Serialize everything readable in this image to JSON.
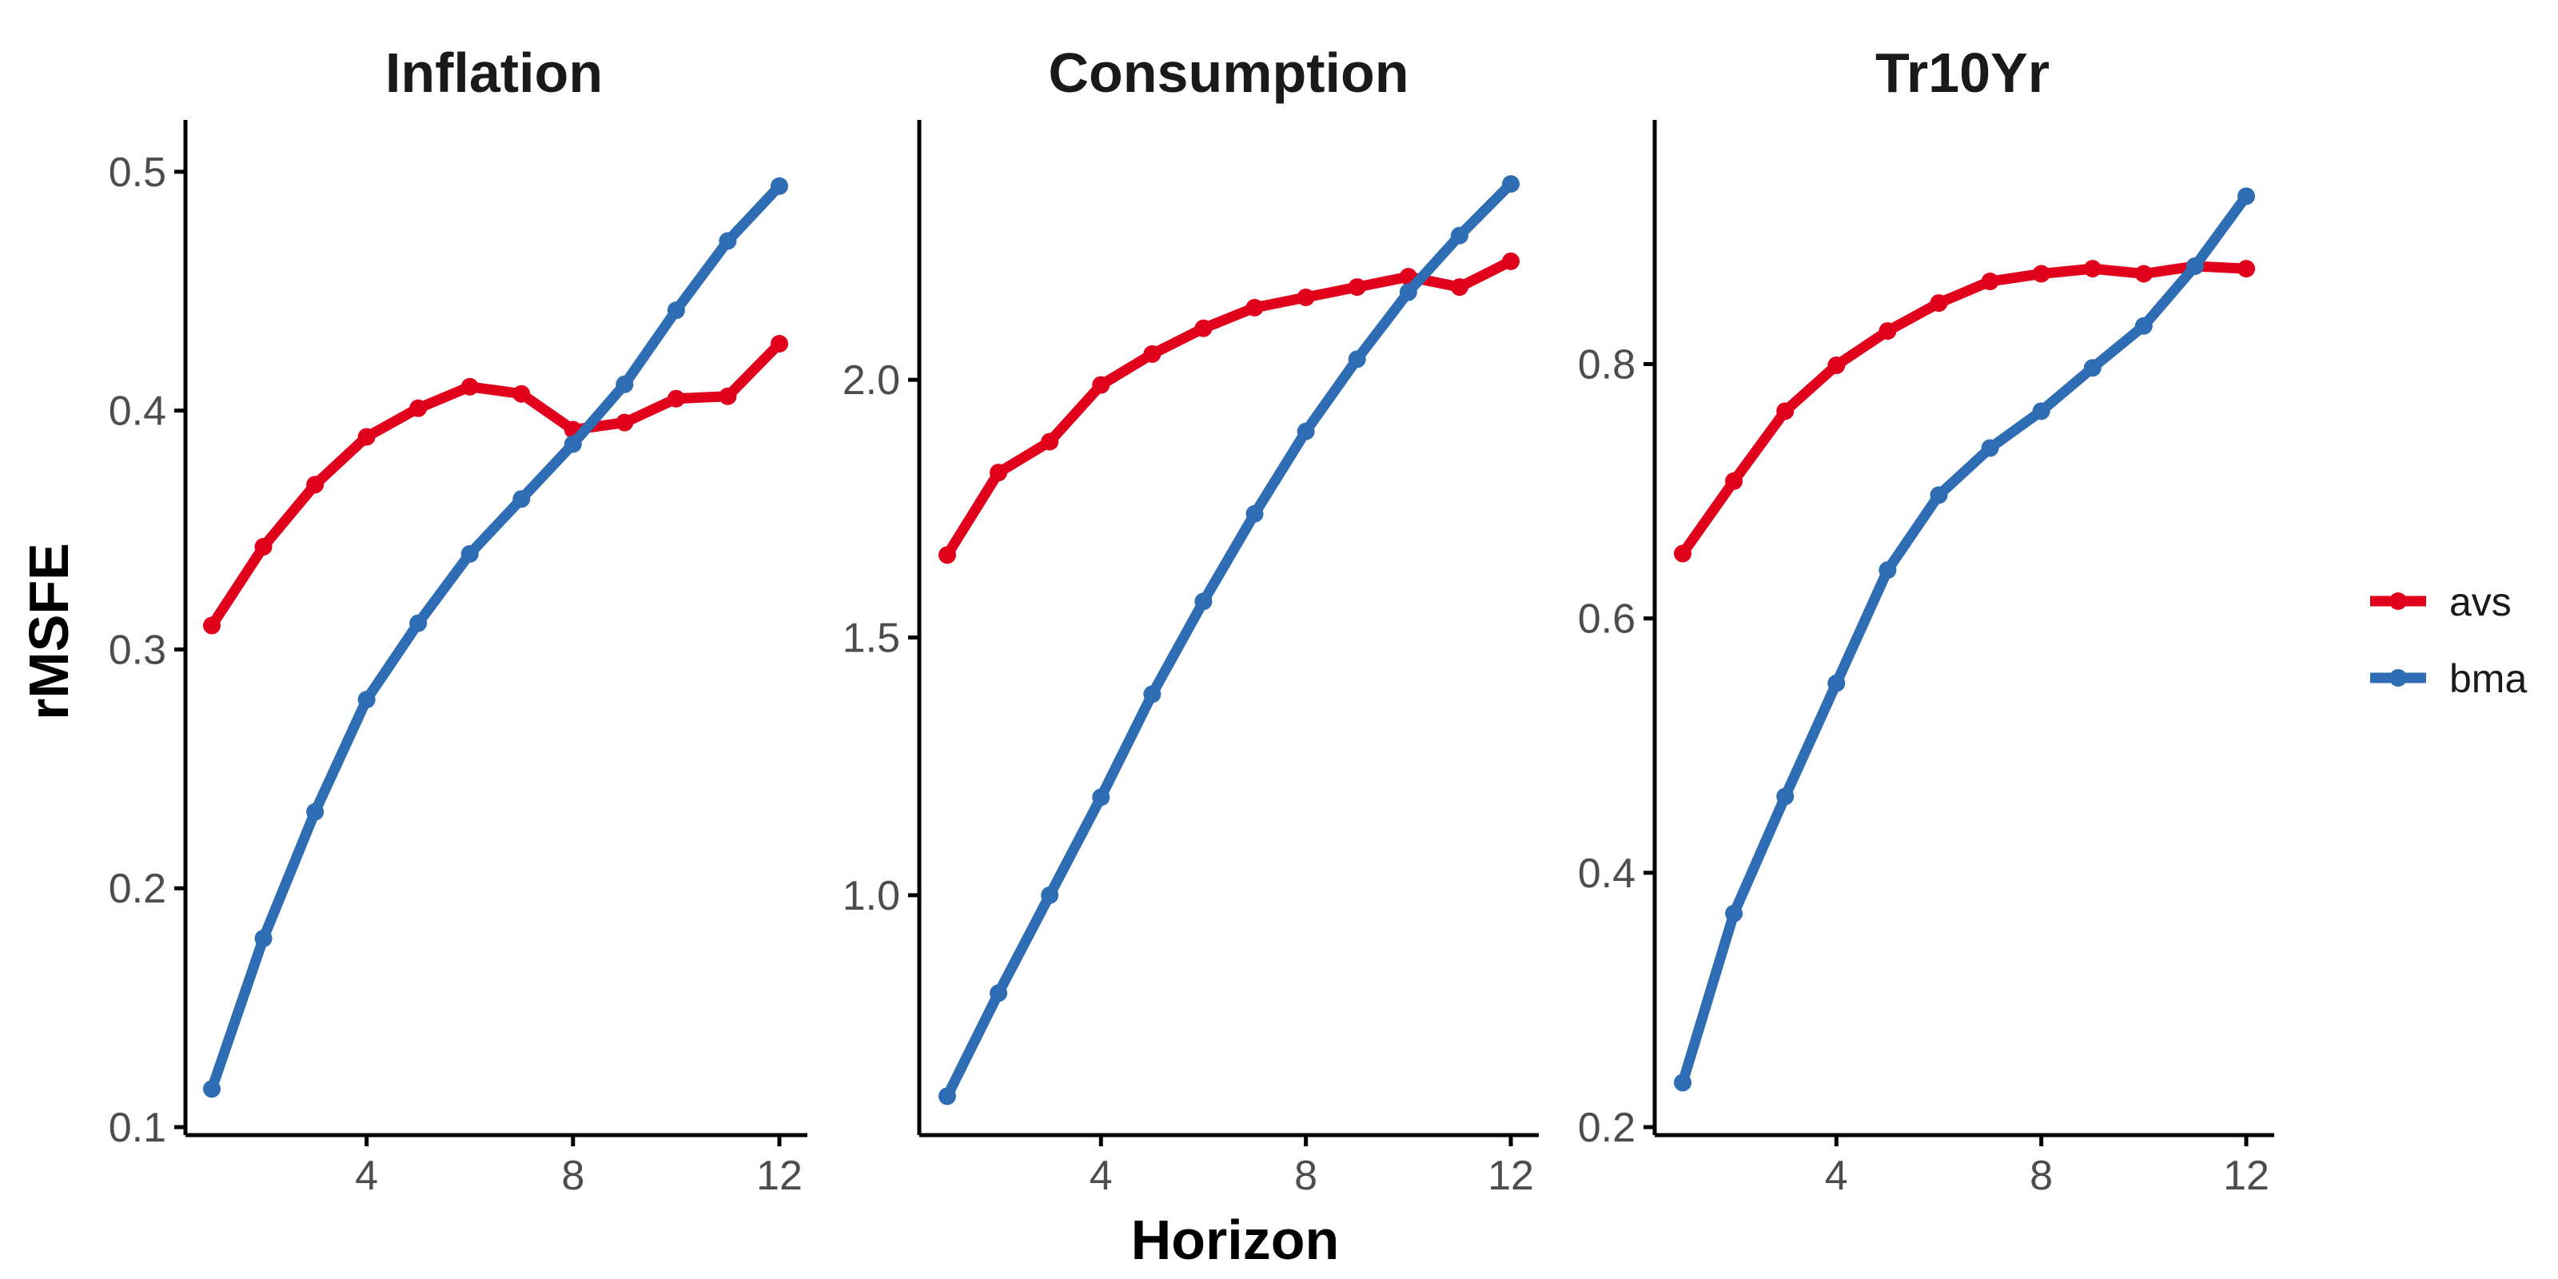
{
  "chart_data": {
    "type": "line",
    "xlabel": "Horizon",
    "ylabel": "rMSFE",
    "legend_position": "right",
    "x_ticks": [
      4,
      8,
      12
    ],
    "series_colors": {
      "avs": "#E0001B",
      "bma": "#2E6DB4"
    },
    "legend": [
      "avs",
      "bma"
    ],
    "panels": [
      {
        "title": "Inflation",
        "ylim": [
          0.1,
          0.51
        ],
        "y_ticks": [
          0.1,
          0.2,
          0.3,
          0.4,
          0.5
        ],
        "y_tick_labels": [
          "0.1",
          "0.2",
          "0.3",
          "0.4",
          "0.5"
        ],
        "series": [
          {
            "name": "avs",
            "x": [
              1,
              2,
              3,
              4,
              5,
              6,
              7,
              8,
              9,
              10,
              11,
              12
            ],
            "values": [
              0.31,
              0.343,
              0.369,
              0.389,
              0.401,
              0.41,
              0.407,
              0.392,
              0.395,
              0.405,
              0.406,
              0.428
            ]
          },
          {
            "name": "bma",
            "x": [
              1,
              2,
              3,
              4,
              5,
              6,
              7,
              8,
              9,
              10,
              11,
              12
            ],
            "values": [
              0.116,
              0.179,
              0.232,
              0.279,
              0.311,
              0.34,
              0.363,
              0.386,
              0.411,
              0.442,
              0.471,
              0.494
            ]
          }
        ]
      },
      {
        "title": "Consumption",
        "ylim": [
          0.55,
          2.45
        ],
        "y_ticks": [
          1.0,
          1.5,
          2.0
        ],
        "y_tick_labels": [
          "1.0",
          "1.5",
          "2.0"
        ],
        "series": [
          {
            "name": "avs",
            "x": [
              1,
              2,
              3,
              4,
              5,
              6,
              7,
              8,
              9,
              10,
              11,
              12
            ],
            "values": [
              1.66,
              1.82,
              1.88,
              1.99,
              2.05,
              2.1,
              2.14,
              2.16,
              2.18,
              2.2,
              2.18,
              2.23
            ]
          },
          {
            "name": "bma",
            "x": [
              1,
              2,
              3,
              4,
              5,
              6,
              7,
              8,
              9,
              10,
              11,
              12
            ],
            "values": [
              0.61,
              0.81,
              1.0,
              1.19,
              1.39,
              1.57,
              1.74,
              1.9,
              2.04,
              2.17,
              2.28,
              2.38
            ]
          }
        ]
      },
      {
        "title": "Tr10Yr",
        "ylim": [
          0.2,
          0.97
        ],
        "y_ticks": [
          0.2,
          0.4,
          0.6,
          0.8
        ],
        "y_tick_labels": [
          "0.2",
          "0.4",
          "0.6",
          "0.8"
        ],
        "series": [
          {
            "name": "avs",
            "x": [
              1,
              2,
              3,
              4,
              5,
              6,
              7,
              8,
              9,
              10,
              11,
              12
            ],
            "values": [
              0.651,
              0.708,
              0.763,
              0.799,
              0.826,
              0.848,
              0.865,
              0.871,
              0.875,
              0.871,
              0.877,
              0.875
            ]
          },
          {
            "name": "bma",
            "x": [
              1,
              2,
              3,
              4,
              5,
              6,
              7,
              8,
              9,
              10,
              11,
              12
            ],
            "values": [
              0.235,
              0.368,
              0.46,
              0.549,
              0.638,
              0.697,
              0.734,
              0.763,
              0.797,
              0.83,
              0.877,
              0.932
            ]
          }
        ]
      }
    ]
  }
}
